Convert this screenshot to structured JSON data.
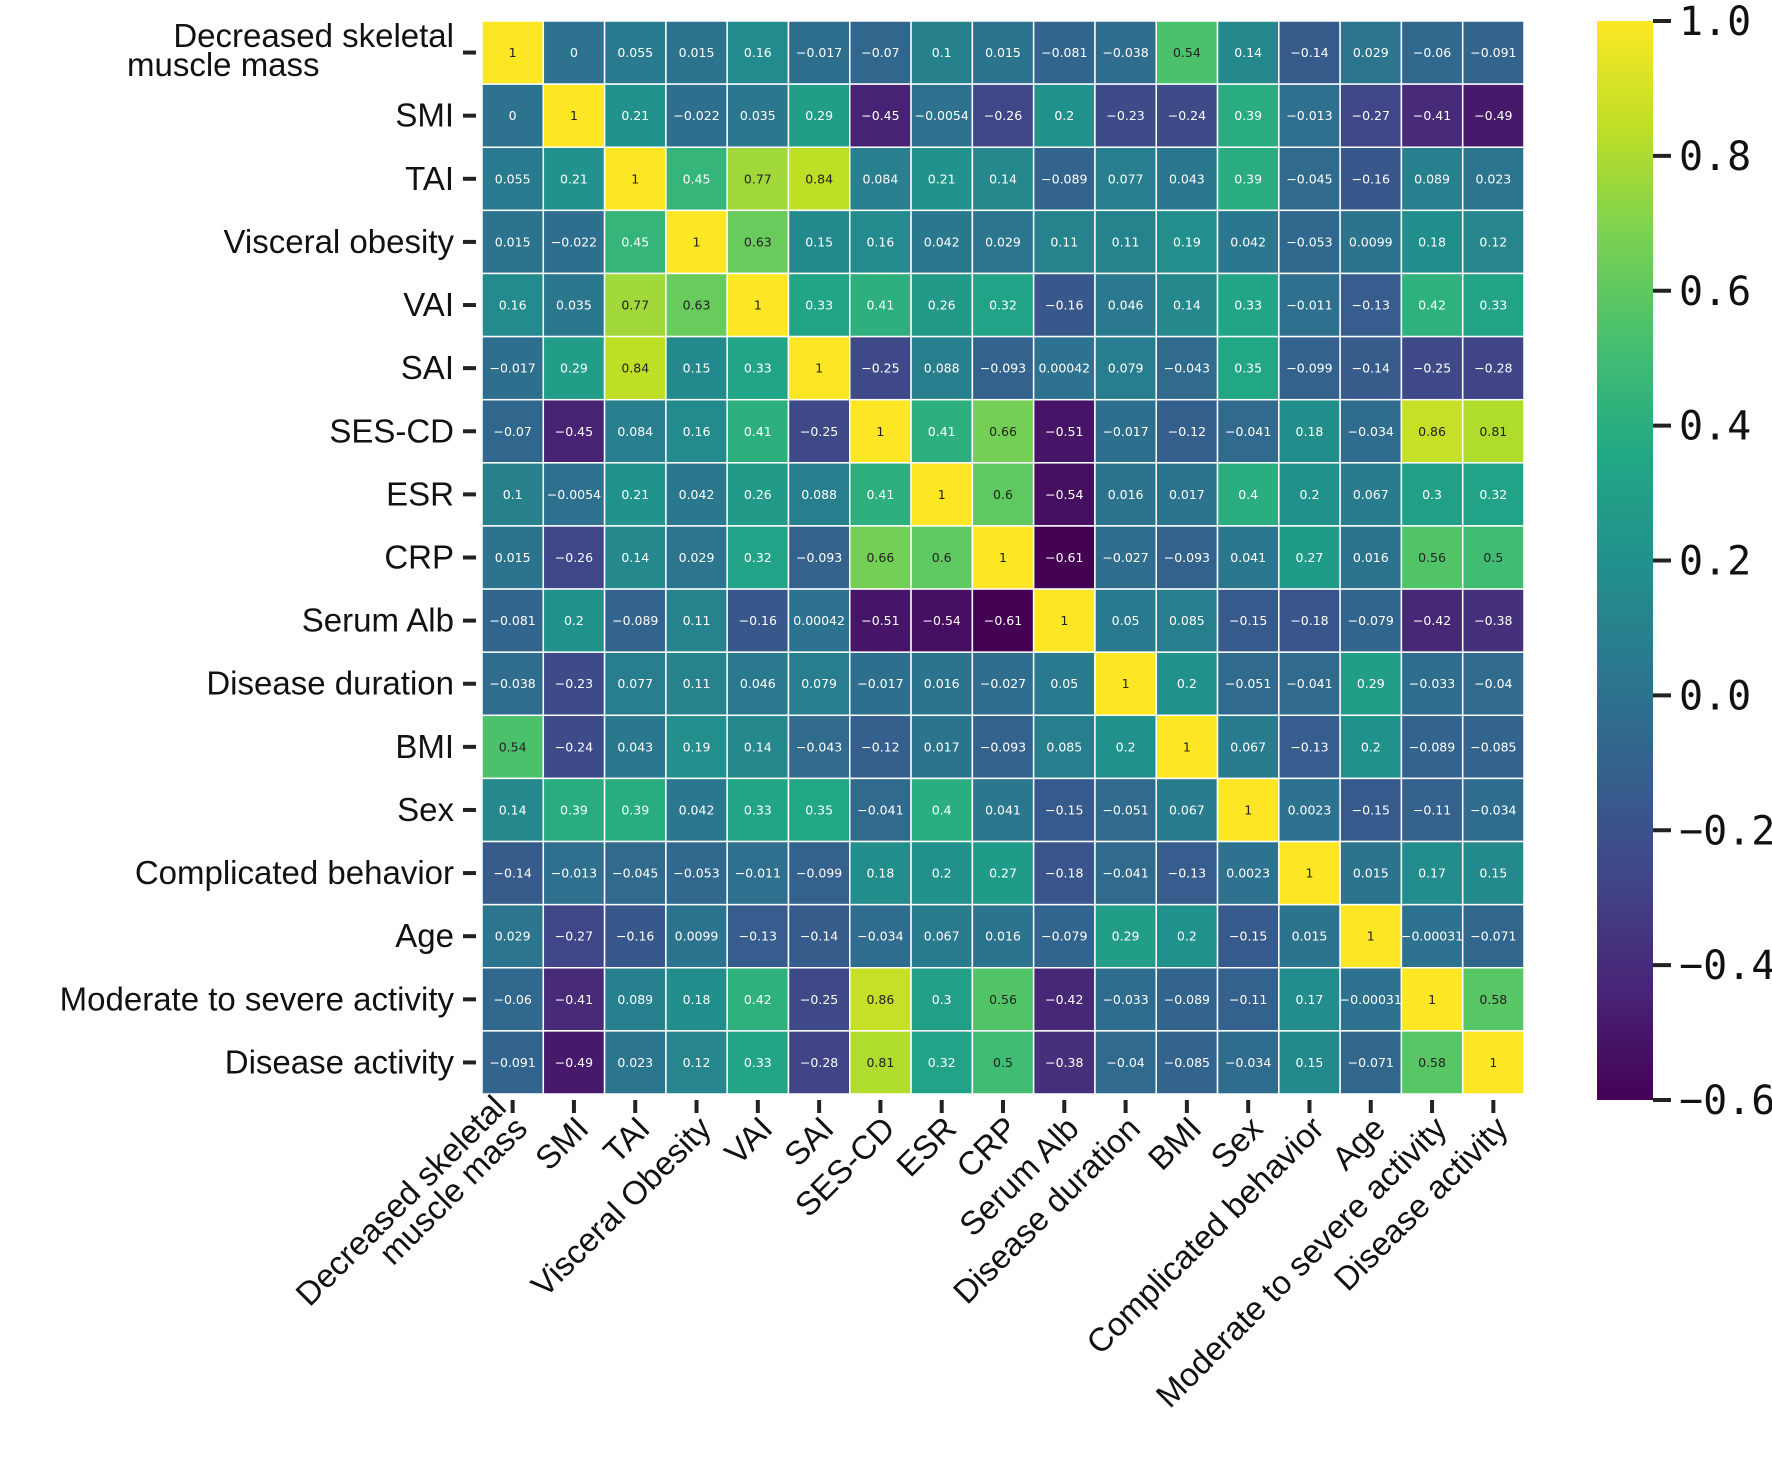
{
  "chart_data": {
    "type": "heatmap",
    "title": "",
    "colormap": "viridis",
    "vmin": -0.6,
    "vmax": 1.0,
    "row_labels": [
      [
        "Decreased skeletal",
        "muscle mass"
      ],
      [
        "SMI"
      ],
      [
        "TAI"
      ],
      [
        "Visceral obesity"
      ],
      [
        "VAI"
      ],
      [
        "SAI"
      ],
      [
        "SES-CD"
      ],
      [
        "ESR"
      ],
      [
        "CRP"
      ],
      [
        "Serum Alb"
      ],
      [
        "Disease duration"
      ],
      [
        "BMI"
      ],
      [
        "Sex"
      ],
      [
        "Complicated behavior"
      ],
      [
        "Age"
      ],
      [
        "Moderate to severe activity"
      ],
      [
        "Disease activity"
      ]
    ],
    "col_labels": [
      [
        "Decreased skeletal",
        "muscle mass"
      ],
      [
        "SMI"
      ],
      [
        "TAI"
      ],
      [
        "Visceral Obesity"
      ],
      [
        "VAI"
      ],
      [
        "SAI"
      ],
      [
        "SES-CD"
      ],
      [
        "ESR"
      ],
      [
        "CRP"
      ],
      [
        "Serum Alb"
      ],
      [
        "Disease duration"
      ],
      [
        "BMI"
      ],
      [
        "Sex"
      ],
      [
        "Complicated behavior"
      ],
      [
        "Age"
      ],
      [
        "Moderate to severe activity"
      ],
      [
        "Disease activity"
      ]
    ],
    "values": [
      [
        1,
        0,
        0.055,
        0.015,
        0.16,
        -0.017,
        -0.07,
        0.1,
        0.015,
        -0.081,
        -0.038,
        0.54,
        0.14,
        -0.14,
        0.029,
        -0.06,
        -0.091
      ],
      [
        0,
        1,
        0.21,
        -0.022,
        0.035,
        0.29,
        -0.45,
        -0.0054,
        -0.26,
        0.2,
        -0.23,
        -0.24,
        0.39,
        -0.013,
        -0.27,
        -0.41,
        -0.49
      ],
      [
        0.055,
        0.21,
        1,
        0.45,
        0.77,
        0.84,
        0.084,
        0.21,
        0.14,
        -0.089,
        0.077,
        0.043,
        0.39,
        -0.045,
        -0.16,
        0.089,
        0.023
      ],
      [
        0.015,
        -0.022,
        0.45,
        1,
        0.63,
        0.15,
        0.16,
        0.042,
        0.029,
        0.11,
        0.11,
        0.19,
        0.042,
        -0.053,
        0.0099,
        0.18,
        0.12
      ],
      [
        0.16,
        0.035,
        0.77,
        0.63,
        1,
        0.33,
        0.41,
        0.26,
        0.32,
        -0.16,
        0.046,
        0.14,
        0.33,
        -0.011,
        -0.13,
        0.42,
        0.33
      ],
      [
        -0.017,
        0.29,
        0.84,
        0.15,
        0.33,
        1,
        -0.25,
        0.088,
        -0.093,
        0.00042,
        0.079,
        -0.043,
        0.35,
        -0.099,
        -0.14,
        -0.25,
        -0.28
      ],
      [
        -0.07,
        -0.45,
        0.084,
        0.16,
        0.41,
        -0.25,
        1,
        0.41,
        0.66,
        -0.51,
        -0.017,
        -0.12,
        -0.041,
        0.18,
        -0.034,
        0.86,
        0.81
      ],
      [
        0.1,
        -0.0054,
        0.21,
        0.042,
        0.26,
        0.088,
        0.41,
        1,
        0.6,
        -0.54,
        0.016,
        0.017,
        0.4,
        0.2,
        0.067,
        0.3,
        0.32
      ],
      [
        0.015,
        -0.26,
        0.14,
        0.029,
        0.32,
        -0.093,
        0.66,
        0.6,
        1,
        -0.61,
        -0.027,
        -0.093,
        0.041,
        0.27,
        0.016,
        0.56,
        0.5
      ],
      [
        -0.081,
        0.2,
        -0.089,
        0.11,
        -0.16,
        0.00042,
        -0.51,
        -0.54,
        -0.61,
        1,
        0.05,
        0.085,
        -0.15,
        -0.18,
        -0.079,
        -0.42,
        -0.38
      ],
      [
        -0.038,
        -0.23,
        0.077,
        0.11,
        0.046,
        0.079,
        -0.017,
        0.016,
        -0.027,
        0.05,
        1,
        0.2,
        -0.051,
        -0.041,
        0.29,
        -0.033,
        -0.04
      ],
      [
        0.54,
        -0.24,
        0.043,
        0.19,
        0.14,
        -0.043,
        -0.12,
        0.017,
        -0.093,
        0.085,
        0.2,
        1,
        0.067,
        -0.13,
        0.2,
        -0.089,
        -0.085
      ],
      [
        0.14,
        0.39,
        0.39,
        0.042,
        0.33,
        0.35,
        -0.041,
        0.4,
        0.041,
        -0.15,
        -0.051,
        0.067,
        1,
        0.0023,
        -0.15,
        -0.11,
        -0.034
      ],
      [
        -0.14,
        -0.013,
        -0.045,
        -0.053,
        -0.011,
        -0.099,
        0.18,
        0.2,
        0.27,
        -0.18,
        -0.041,
        -0.13,
        0.0023,
        1,
        0.015,
        0.17,
        0.15
      ],
      [
        0.029,
        -0.27,
        -0.16,
        0.0099,
        -0.13,
        -0.14,
        -0.034,
        0.067,
        0.016,
        -0.079,
        0.29,
        0.2,
        -0.15,
        0.015,
        1,
        -0.00031,
        -0.071
      ],
      [
        -0.06,
        -0.41,
        0.089,
        0.18,
        0.42,
        -0.25,
        0.86,
        0.3,
        0.56,
        -0.42,
        -0.033,
        -0.089,
        -0.11,
        0.17,
        -0.00031,
        1,
        0.58
      ],
      [
        -0.091,
        -0.49,
        0.023,
        0.12,
        0.33,
        -0.28,
        0.81,
        0.32,
        0.5,
        -0.38,
        -0.04,
        -0.085,
        -0.034,
        0.15,
        -0.071,
        0.58,
        1
      ]
    ],
    "colorbar": {
      "ticks": [
        1.0,
        0.8,
        0.6,
        0.4,
        0.2,
        0.0,
        -0.2,
        -0.4,
        -0.6
      ],
      "tick_labels": [
        "1.0",
        "0.8",
        "0.6",
        "0.4",
        "0.2",
        "0.0",
        "−0.2",
        "−0.4",
        "−0.6"
      ]
    }
  }
}
